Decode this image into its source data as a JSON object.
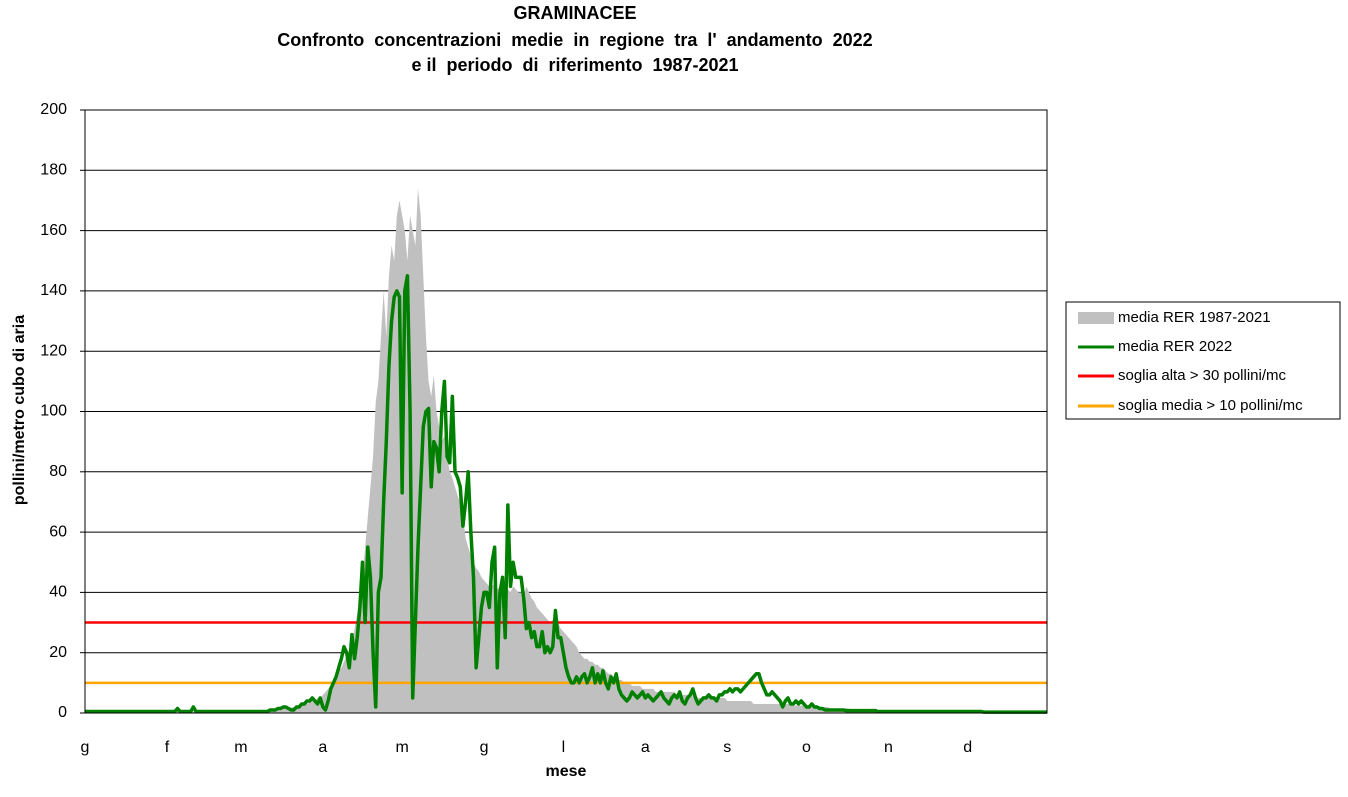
{
  "chart_data": {
    "type": "line",
    "title": "GRAMINACEE",
    "subtitle": [
      "Confronto  concentrazioni  medie  in  regione  tra  l'  andamento  2022",
      "e il  periodo  di  riferimento  1987-2021"
    ],
    "xlabel": "mese",
    "ylabel": "pollini/metro cubo di aria",
    "ylim": [
      0,
      200
    ],
    "yticks": [
      0,
      20,
      40,
      60,
      80,
      100,
      120,
      140,
      160,
      180,
      200
    ],
    "grid": true,
    "legend": "right",
    "categories": [
      "g",
      null,
      null,
      null,
      null,
      null,
      null,
      null,
      null,
      null,
      null,
      null,
      null,
      null,
      null,
      null,
      null,
      null,
      null,
      null,
      null,
      null,
      null,
      null,
      null,
      null,
      null,
      null,
      null,
      null,
      null,
      "f",
      null,
      null,
      null,
      null,
      null,
      null,
      null,
      null,
      null,
      null,
      null,
      null,
      null,
      null,
      null,
      null,
      null,
      null,
      null,
      null,
      null,
      null,
      null,
      null,
      null,
      null,
      null,
      "m",
      null,
      null,
      null,
      null,
      null,
      null,
      null,
      null,
      null,
      null,
      null,
      null,
      null,
      null,
      null,
      null,
      null,
      null,
      null,
      null,
      null,
      null,
      null,
      null,
      null,
      null,
      null,
      null,
      null,
      null,
      "a",
      null,
      null,
      null,
      null,
      null,
      null,
      null,
      null,
      null,
      null,
      null,
      null,
      null,
      null,
      null,
      null,
      null,
      null,
      null,
      null,
      null,
      null,
      null,
      null,
      null,
      null,
      null,
      null,
      null,
      "m",
      null,
      null,
      null,
      null,
      null,
      null,
      null,
      null,
      null,
      null,
      null,
      null,
      null,
      null,
      null,
      null,
      null,
      null,
      null,
      null,
      null,
      null,
      null,
      null,
      null,
      null,
      null,
      null,
      null,
      null,
      "g",
      null,
      null,
      null,
      null,
      null,
      null,
      null,
      null,
      null,
      null,
      null,
      null,
      null,
      null,
      null,
      null,
      null,
      null,
      null,
      null,
      null,
      null,
      null,
      null,
      null,
      null,
      null,
      null,
      null,
      "l",
      null,
      null,
      null,
      null,
      null,
      null,
      null,
      null,
      null,
      null,
      null,
      null,
      null,
      null,
      null,
      null,
      null,
      null,
      null,
      null,
      null,
      null,
      null,
      null,
      null,
      null,
      null,
      null,
      null,
      null,
      "a",
      null,
      null,
      null,
      null,
      null,
      null,
      null,
      null,
      null,
      null,
      null,
      null,
      null,
      null,
      null,
      null,
      null,
      null,
      null,
      null,
      null,
      null,
      null,
      null,
      null,
      null,
      null,
      null,
      null,
      null,
      "s",
      null,
      null,
      null,
      null,
      null,
      null,
      null,
      null,
      null,
      null,
      null,
      null,
      null,
      null,
      null,
      null,
      null,
      null,
      null,
      null,
      null,
      null,
      null,
      null,
      null,
      null,
      null,
      null,
      null,
      "o",
      null,
      null,
      null,
      null,
      null,
      null,
      null,
      null,
      null,
      null,
      null,
      null,
      null,
      null,
      null,
      null,
      null,
      null,
      null,
      null,
      null,
      null,
      null,
      null,
      null,
      null,
      null,
      null,
      null,
      null,
      "n",
      null,
      null,
      null,
      null,
      null,
      null,
      null,
      null,
      null,
      null,
      null,
      null,
      null,
      null,
      null,
      null,
      null,
      null,
      null,
      null,
      null,
      null,
      null,
      null,
      null,
      null,
      null,
      null,
      null,
      "d",
      null,
      null,
      null,
      null,
      null,
      null,
      null,
      null,
      null,
      null,
      null,
      null,
      null,
      null,
      null,
      null,
      null,
      null,
      null,
      null,
      null,
      null,
      null,
      null,
      null,
      null,
      null,
      null,
      null,
      null
    ],
    "series": [
      {
        "name": "media RER 1987-2021",
        "color": "#c0c0c0",
        "kind": "area",
        "values": [
          0.5,
          0.5,
          0.5,
          0.5,
          0.5,
          0.5,
          0.5,
          0.5,
          0.5,
          0.5,
          0.5,
          0.5,
          0.5,
          0.5,
          0.5,
          0.5,
          0.5,
          0.5,
          0.5,
          0.5,
          0.5,
          0.5,
          0.5,
          0.5,
          0.5,
          0.5,
          0.5,
          0.5,
          0.5,
          0.5,
          0.5,
          0.5,
          0.5,
          0.5,
          0.5,
          0.5,
          0.5,
          0.5,
          0.5,
          0.5,
          0.5,
          0.5,
          0.5,
          0.5,
          0.5,
          0.5,
          0.5,
          0.5,
          0.5,
          0.5,
          0.5,
          0.5,
          0.5,
          0.5,
          0.5,
          0.5,
          0.5,
          0.5,
          0.5,
          0.5,
          0.5,
          0.5,
          0.6,
          0.6,
          0.7,
          0.7,
          0.8,
          0.8,
          0.9,
          1,
          1,
          1.2,
          1.2,
          1.4,
          1.5,
          1.5,
          1.7,
          1.8,
          1.8,
          2,
          2,
          2,
          2.5,
          3,
          3,
          3.5,
          4,
          4,
          5,
          5,
          6,
          7,
          8,
          9,
          10,
          12,
          14,
          15,
          17,
          19,
          21,
          24,
          28,
          33,
          38,
          45,
          55,
          65,
          75,
          85,
          103,
          110,
          125,
          140,
          125,
          145,
          155,
          150,
          165,
          170,
          165,
          160,
          150,
          165,
          160,
          155,
          174,
          165,
          145,
          125,
          110,
          105,
          112,
          100,
          95,
          90,
          92,
          85,
          80,
          78,
          75,
          72,
          70,
          65,
          58,
          55,
          52,
          50,
          48,
          47,
          45,
          44,
          43,
          42,
          42,
          43,
          41,
          42,
          40,
          40,
          41,
          40,
          42,
          41,
          40,
          40,
          39,
          42,
          40,
          38,
          37,
          35,
          34,
          33,
          32,
          31,
          30,
          31,
          29,
          30,
          28,
          27,
          26,
          25,
          24,
          23,
          22,
          20,
          19,
          18,
          18,
          17,
          17,
          16,
          16,
          15,
          15,
          14,
          13,
          13,
          12,
          12,
          11,
          11,
          10,
          10,
          10,
          9,
          9,
          9,
          9,
          8,
          8,
          8,
          8,
          8,
          7,
          7,
          7,
          7,
          7,
          7,
          7,
          7,
          6,
          6,
          6,
          6,
          6,
          6,
          6,
          6,
          5,
          5,
          5,
          5,
          5,
          5,
          5,
          5,
          5,
          5,
          5,
          4,
          4,
          4,
          4,
          4,
          4,
          4,
          4,
          4,
          4,
          3,
          3,
          3,
          3,
          3,
          3,
          3,
          3,
          3,
          3,
          3,
          3,
          3,
          3,
          3,
          2.5,
          2.5,
          2.5,
          2.5,
          2.5,
          2,
          2,
          2,
          2,
          2,
          2,
          2,
          2,
          2,
          1.5,
          1.5,
          1.5,
          1.5,
          1.5,
          1.5,
          1.5,
          1.5,
          1,
          1,
          1,
          1,
          1,
          1,
          1,
          1,
          1,
          1,
          0.8,
          0.8,
          0.8,
          0.8,
          0.8,
          0.8,
          0.8,
          0.8,
          0.8,
          0.8,
          0.8,
          0.8,
          0.8,
          0.8,
          0.8,
          0.8,
          0.8,
          0.8,
          0.8,
          0.8,
          0.5,
          0.5,
          0.5,
          0.5,
          0.5,
          0.5,
          0.5,
          0.5,
          0.5,
          0.5,
          0.5,
          0.5,
          0.5,
          0.5,
          0.5,
          0.5,
          0.5,
          0.5,
          0.5,
          0.5,
          0.3,
          0.3,
          0.3,
          0.3,
          0.3,
          0.3,
          0.3,
          0.3,
          0.3,
          0.3,
          0.3,
          0.3,
          0.3,
          0.3,
          0.3,
          0.3,
          0.3,
          0.3,
          0.3,
          0.3,
          0.3,
          0.3,
          0.3,
          0.3,
          0.3
        ]
      },
      {
        "name": "media RER 2022",
        "color": "#008000",
        "kind": "line",
        "values": [
          0.5,
          0.5,
          0.5,
          0.5,
          0.5,
          0.5,
          0.5,
          0.5,
          0.5,
          0.5,
          0.5,
          0.5,
          0.5,
          0.5,
          0.5,
          0.5,
          0.5,
          0.5,
          0.5,
          0.5,
          0.5,
          0.5,
          0.5,
          0.5,
          0.5,
          0.5,
          0.5,
          0.5,
          0.5,
          0.5,
          0.5,
          0.5,
          0.5,
          0.5,
          0.5,
          1.5,
          0.5,
          0.5,
          0.5,
          0.5,
          0.5,
          2,
          0.5,
          0.5,
          0.5,
          0.5,
          0.5,
          0.5,
          0.5,
          0.5,
          0.5,
          0.5,
          0.5,
          0.5,
          0.5,
          0.5,
          0.5,
          0.5,
          0.5,
          0.5,
          0.5,
          0.5,
          0.5,
          0.5,
          0.5,
          0.5,
          0.5,
          0.5,
          0.5,
          0.5,
          1,
          1,
          1,
          1.5,
          1.5,
          2,
          2,
          1.5,
          1,
          1,
          2,
          2,
          3,
          3,
          4,
          4,
          5,
          4,
          3,
          5,
          2,
          1,
          4,
          8,
          10,
          12,
          15,
          18,
          22,
          20,
          15,
          26,
          18,
          25,
          35,
          50,
          30,
          55,
          45,
          20,
          2,
          40,
          45,
          70,
          90,
          115,
          130,
          138,
          140,
          138,
          73,
          140,
          145,
          100,
          5,
          30,
          55,
          75,
          95,
          100,
          101,
          75,
          90,
          88,
          80,
          100,
          110,
          85,
          83,
          105,
          80,
          78,
          75,
          62,
          70,
          80,
          60,
          45,
          15,
          25,
          35,
          40,
          40,
          35,
          50,
          55,
          15,
          40,
          45,
          25,
          69,
          42,
          50,
          45,
          45,
          45,
          38,
          28,
          30,
          25,
          27,
          22,
          22,
          27,
          20,
          22,
          20,
          22,
          34,
          25,
          25,
          20,
          15,
          12,
          10,
          10,
          12,
          10,
          12,
          13,
          10,
          12,
          15,
          10,
          13,
          10,
          14,
          10,
          8,
          12,
          10,
          13,
          8,
          6,
          5,
          4,
          5,
          7,
          6,
          5,
          6,
          7,
          5,
          6,
          5,
          4,
          5,
          6,
          7,
          5,
          4,
          3,
          5,
          6,
          5,
          7,
          4,
          3,
          5,
          6,
          8,
          5,
          3,
          4,
          5,
          5,
          6,
          5,
          5,
          4,
          6,
          6,
          7,
          7,
          8,
          7,
          8,
          8,
          7,
          8,
          9,
          10,
          11,
          12,
          13,
          13,
          10,
          8,
          6,
          6,
          7,
          6,
          5,
          4,
          2,
          4,
          5,
          3,
          3,
          4,
          3,
          4,
          3,
          2,
          2,
          3,
          2,
          2,
          1.5,
          1.5,
          1,
          1,
          1,
          1,
          1,
          1,
          1,
          1,
          0.8,
          0.8,
          0.8,
          0.8,
          0.8,
          0.8,
          0.8,
          0.8,
          0.8,
          0.8,
          0.8,
          0.8,
          0.5,
          0.5,
          0.5,
          0.5,
          0.5,
          0.5,
          0.5,
          0.5,
          0.5,
          0.5,
          0.5,
          0.5,
          0.5,
          0.5,
          0.5,
          0.5,
          0.5,
          0.5,
          0.5,
          0.5,
          0.5,
          0.5,
          0.5,
          0.5,
          0.5,
          0.5,
          0.5,
          0.5,
          0.5,
          0.5,
          0.5,
          0.5,
          0.5,
          0.5,
          0.5,
          0.5,
          0.5,
          0.5,
          0.5,
          0.5,
          0.3,
          0.3,
          0.3,
          0.3,
          0.3,
          0.3,
          0.3,
          0.3,
          0.3,
          0.3,
          0.3,
          0.3,
          0.3,
          0.3,
          0.3,
          0.3,
          0.3,
          0.3,
          0.3,
          0.3,
          0.3,
          0.3,
          0.3,
          0.3,
          0.3
        ]
      }
    ],
    "thresholds": [
      {
        "name": "soglia alta > 30 pollini/mc",
        "color": "#ff0000",
        "value": 30
      },
      {
        "name": "soglia media > 10 pollini/mc",
        "color": "#ffa500",
        "value": 10
      }
    ]
  }
}
